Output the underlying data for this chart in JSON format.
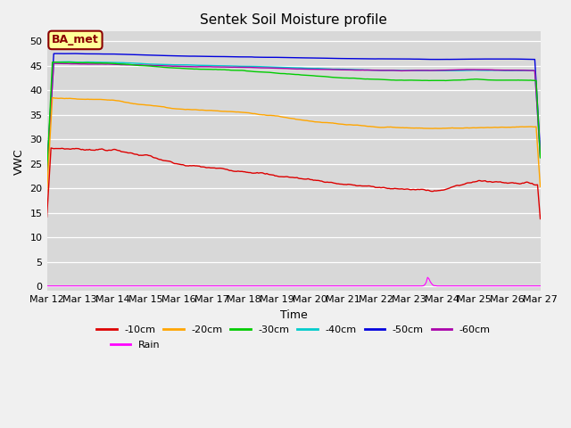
{
  "title": "Sentek Soil Moisture profile",
  "xlabel": "Time",
  "ylabel": "VWC",
  "legend_label": "BA_met",
  "ylim": [
    -1,
    52
  ],
  "yticks": [
    0,
    5,
    10,
    15,
    20,
    25,
    30,
    35,
    40,
    45,
    50
  ],
  "plot_bg_color": "#d8d8d8",
  "fig_bg_color": "#f0f0f0",
  "series": {
    "-10cm": {
      "color": "#dd0000"
    },
    "-20cm": {
      "color": "#ffa500"
    },
    "-30cm": {
      "color": "#00cc00"
    },
    "-40cm": {
      "color": "#00cccc"
    },
    "-50cm": {
      "color": "#0000dd"
    },
    "-60cm": {
      "color": "#aa00aa"
    }
  },
  "rain_color": "#ff00ff",
  "n_points": 360,
  "figsize": [
    6.4,
    4.8
  ],
  "dpi": 100
}
